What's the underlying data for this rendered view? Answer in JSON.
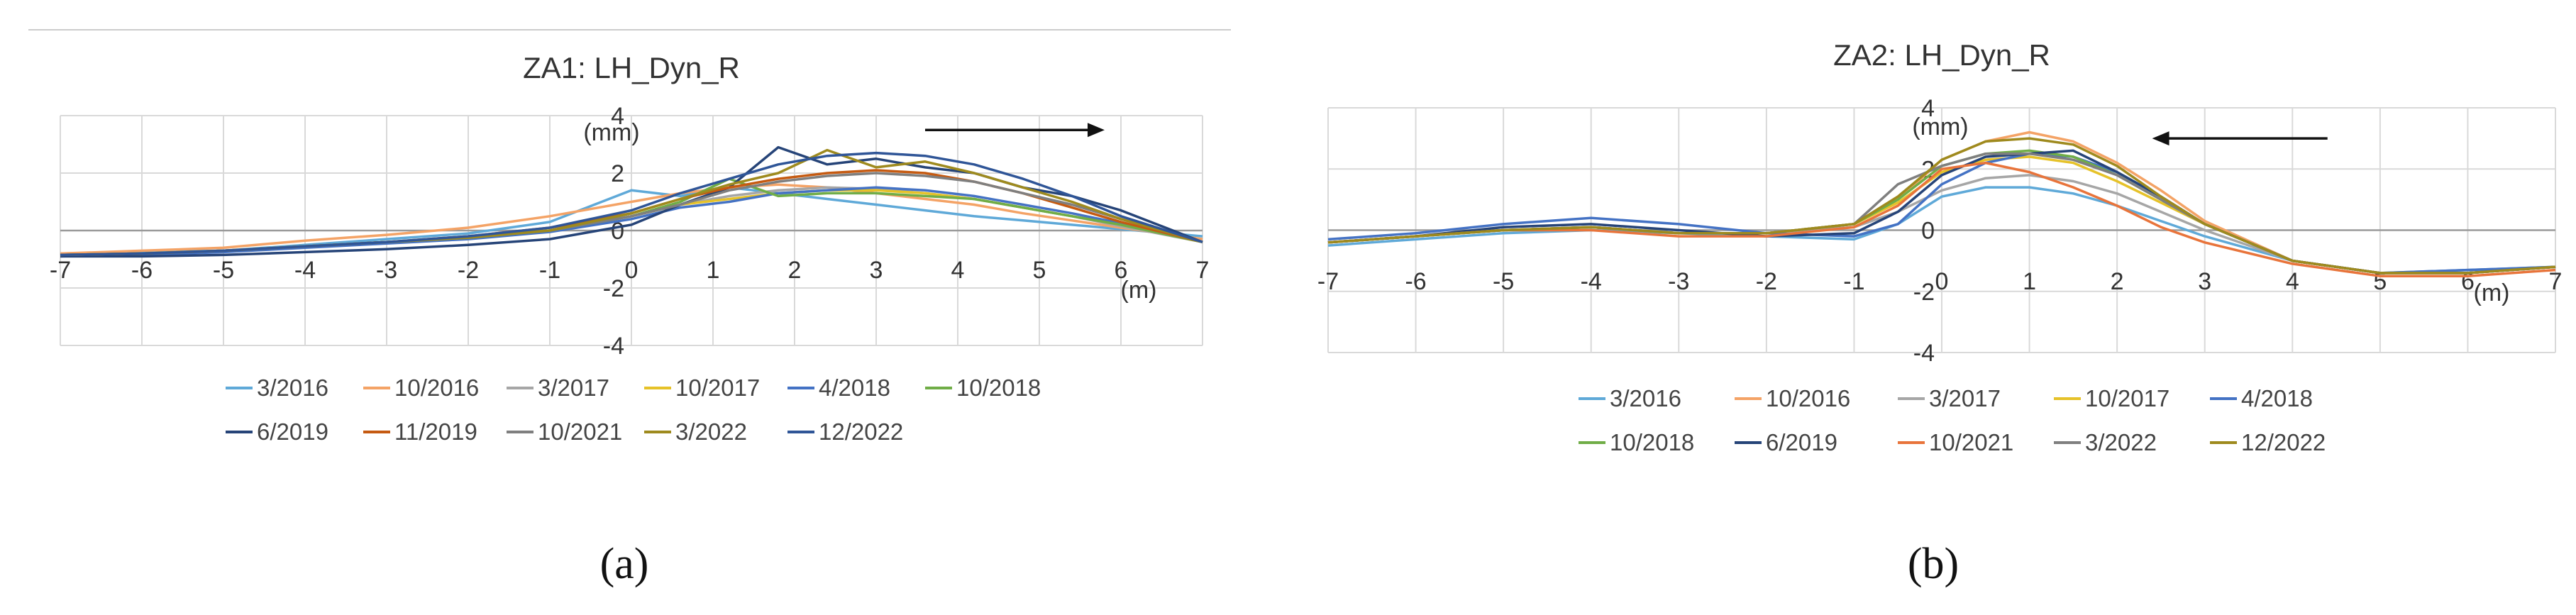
{
  "chart_data": [
    {
      "type": "line",
      "panel_label": "(a)",
      "title": "ZA1: LH_Dyn_R",
      "xlabel": "(m)",
      "ylabel": "(mm)",
      "xlim": [
        -7,
        7
      ],
      "ylim": [
        -4,
        4
      ],
      "xticks": [
        -7,
        -6,
        -5,
        -4,
        -3,
        -2,
        -1,
        0,
        1,
        2,
        3,
        4,
        5,
        6,
        7
      ],
      "yticks": [
        -4,
        -2,
        0,
        2,
        4
      ],
      "grid": true,
      "legend_position": "bottom",
      "arrow_direction": "right",
      "arrow_range": [
        3.6,
        5.8
      ],
      "arrow_y": 3.5,
      "x": [
        -7,
        -6,
        -5,
        -4,
        -3,
        -2,
        -1,
        0,
        0.6,
        1.2,
        1.8,
        2.4,
        3,
        3.6,
        4.2,
        4.8,
        5.4,
        6,
        7
      ],
      "series": [
        {
          "name": "3/2016",
          "color": "#5fa9d8",
          "values": [
            -0.8,
            -0.75,
            -0.7,
            -0.5,
            -0.3,
            -0.1,
            0.3,
            1.4,
            1.2,
            1.5,
            1.3,
            1.1,
            0.9,
            0.7,
            0.5,
            0.35,
            0.2,
            0.05,
            -0.2
          ]
        },
        {
          "name": "10/2016",
          "color": "#f4a366",
          "values": [
            -0.8,
            -0.7,
            -0.6,
            -0.35,
            -0.15,
            0.1,
            0.5,
            1.0,
            1.3,
            1.5,
            1.6,
            1.5,
            1.3,
            1.1,
            0.9,
            0.6,
            0.35,
            0.1,
            -0.3
          ]
        },
        {
          "name": "3/2017",
          "color": "#a6a6a6",
          "values": [
            -0.85,
            -0.8,
            -0.7,
            -0.55,
            -0.4,
            -0.25,
            0.0,
            0.5,
            0.9,
            1.2,
            1.4,
            1.5,
            1.45,
            1.3,
            1.1,
            0.8,
            0.5,
            0.15,
            -0.4
          ]
        },
        {
          "name": "10/2017",
          "color": "#e6c229",
          "values": [
            -0.85,
            -0.8,
            -0.7,
            -0.55,
            -0.4,
            -0.25,
            0.0,
            0.5,
            0.9,
            1.1,
            1.3,
            1.4,
            1.4,
            1.3,
            1.1,
            0.8,
            0.5,
            0.2,
            -0.4
          ]
        },
        {
          "name": "4/2018",
          "color": "#4472c4",
          "values": [
            -0.9,
            -0.85,
            -0.75,
            -0.6,
            -0.45,
            -0.3,
            -0.05,
            0.4,
            0.8,
            1.0,
            1.3,
            1.4,
            1.5,
            1.4,
            1.2,
            0.9,
            0.6,
            0.25,
            -0.4
          ]
        },
        {
          "name": "10/2018",
          "color": "#70ad47",
          "values": [
            -0.85,
            -0.8,
            -0.7,
            -0.55,
            -0.4,
            -0.25,
            0.0,
            0.5,
            1.0,
            1.8,
            1.2,
            1.3,
            1.3,
            1.2,
            1.1,
            0.8,
            0.5,
            0.2,
            -0.4
          ]
        },
        {
          "name": "6/2019",
          "color": "#264478",
          "values": [
            -0.9,
            -0.9,
            -0.85,
            -0.75,
            -0.65,
            -0.5,
            -0.3,
            0.2,
            0.9,
            1.5,
            2.9,
            2.3,
            2.5,
            2.2,
            2.0,
            1.5,
            1.2,
            0.7,
            -0.4
          ]
        },
        {
          "name": "11/2019",
          "color": "#c55a11",
          "values": [
            -0.85,
            -0.8,
            -0.7,
            -0.55,
            -0.4,
            -0.2,
            0.1,
            0.6,
            1.1,
            1.5,
            1.8,
            2.0,
            2.1,
            2.0,
            1.7,
            1.3,
            0.8,
            0.3,
            -0.4
          ]
        },
        {
          "name": "10/2021",
          "color": "#7f7f7f",
          "values": [
            -0.85,
            -0.8,
            -0.7,
            -0.55,
            -0.4,
            -0.25,
            0.0,
            0.5,
            0.9,
            1.4,
            1.7,
            1.9,
            2.0,
            1.9,
            1.7,
            1.3,
            0.9,
            0.4,
            -0.4
          ]
        },
        {
          "name": "3/2022",
          "color": "#9e8a1e",
          "values": [
            -0.85,
            -0.8,
            -0.7,
            -0.55,
            -0.4,
            -0.25,
            0.0,
            0.6,
            1.1,
            1.6,
            2.0,
            2.8,
            2.2,
            2.4,
            2.0,
            1.5,
            1.0,
            0.4,
            -0.4
          ]
        },
        {
          "name": "12/2022",
          "color": "#2f5597",
          "values": [
            -0.85,
            -0.8,
            -0.7,
            -0.55,
            -0.4,
            -0.2,
            0.1,
            0.7,
            1.3,
            1.8,
            2.3,
            2.6,
            2.7,
            2.6,
            2.3,
            1.8,
            1.2,
            0.5,
            -0.4
          ]
        }
      ]
    },
    {
      "type": "line",
      "panel_label": "(b)",
      "title": "ZA2: LH_Dyn_R",
      "xlabel": "(m)",
      "ylabel": "(mm)",
      "xlim": [
        -7,
        7
      ],
      "ylim": [
        -4,
        4
      ],
      "xticks": [
        -7,
        -6,
        -5,
        -4,
        -3,
        -2,
        -1,
        0,
        1,
        2,
        3,
        4,
        5,
        6,
        7
      ],
      "yticks": [
        -4,
        -2,
        0,
        2,
        4
      ],
      "grid": true,
      "legend_position": "bottom",
      "arrow_direction": "left",
      "arrow_range": [
        2.4,
        4.4
      ],
      "arrow_y": 3.0,
      "x": [
        -7,
        -6,
        -5,
        -4,
        -3,
        -2,
        -1,
        -0.5,
        0,
        0.5,
        1,
        1.5,
        2,
        2.5,
        3,
        4,
        5,
        6,
        7
      ],
      "series": [
        {
          "name": "3/2016",
          "color": "#5fa9d8",
          "values": [
            -0.5,
            -0.3,
            -0.1,
            0.0,
            -0.1,
            -0.2,
            -0.3,
            0.2,
            1.1,
            1.4,
            1.4,
            1.2,
            0.8,
            0.3,
            -0.2,
            -1.0,
            -1.4,
            -1.3,
            -1.2
          ]
        },
        {
          "name": "10/2016",
          "color": "#f4a366",
          "values": [
            -0.4,
            -0.2,
            0.0,
            0.1,
            -0.1,
            -0.1,
            0.2,
            1.0,
            2.3,
            2.9,
            3.2,
            2.9,
            2.2,
            1.3,
            0.3,
            -1.0,
            -1.4,
            -1.4,
            -1.2
          ]
        },
        {
          "name": "3/2017",
          "color": "#a6a6a6",
          "values": [
            -0.4,
            -0.2,
            0.0,
            0.1,
            -0.1,
            -0.1,
            0.1,
            0.6,
            1.3,
            1.7,
            1.8,
            1.6,
            1.2,
            0.6,
            0.0,
            -1.0,
            -1.4,
            -1.4,
            -1.2
          ]
        },
        {
          "name": "10/2017",
          "color": "#e6c229",
          "values": [
            -0.4,
            -0.2,
            0.0,
            0.1,
            -0.1,
            -0.1,
            0.2,
            0.9,
            1.9,
            2.3,
            2.4,
            2.2,
            1.6,
            0.9,
            0.2,
            -1.0,
            -1.4,
            -1.4,
            -1.2
          ]
        },
        {
          "name": "4/2018",
          "color": "#4472c4",
          "values": [
            -0.3,
            -0.1,
            0.2,
            0.4,
            0.2,
            -0.1,
            -0.2,
            0.2,
            1.5,
            2.2,
            2.5,
            2.4,
            1.9,
            1.1,
            0.2,
            -1.0,
            -1.4,
            -1.3,
            -1.2
          ]
        },
        {
          "name": "10/2018",
          "color": "#70ad47",
          "values": [
            -0.4,
            -0.2,
            0.0,
            0.1,
            -0.1,
            -0.1,
            0.2,
            1.0,
            2.1,
            2.5,
            2.6,
            2.4,
            1.8,
            1.0,
            0.2,
            -1.0,
            -1.4,
            -1.4,
            -1.2
          ]
        },
        {
          "name": "6/2019",
          "color": "#264478",
          "values": [
            -0.4,
            -0.2,
            0.1,
            0.2,
            0.0,
            -0.2,
            -0.1,
            0.6,
            1.8,
            2.4,
            2.5,
            2.6,
            1.9,
            1.1,
            0.2,
            -1.0,
            -1.4,
            -1.4,
            -1.2
          ]
        },
        {
          "name": "10/2021",
          "color": "#e8743b",
          "values": [
            -0.4,
            -0.2,
            0.0,
            0.0,
            -0.2,
            -0.2,
            0.1,
            0.8,
            2.0,
            2.2,
            1.9,
            1.4,
            0.8,
            0.1,
            -0.4,
            -1.1,
            -1.5,
            -1.5,
            -1.3
          ]
        },
        {
          "name": "3/2022",
          "color": "#7f7f7f",
          "values": [
            -0.4,
            -0.2,
            0.0,
            0.1,
            -0.1,
            -0.1,
            0.2,
            1.5,
            2.1,
            2.5,
            2.5,
            2.3,
            1.8,
            1.0,
            0.2,
            -1.0,
            -1.4,
            -1.4,
            -1.2
          ]
        },
        {
          "name": "12/2022",
          "color": "#9e8a1e",
          "values": [
            -0.4,
            -0.2,
            0.0,
            0.1,
            -0.1,
            -0.1,
            0.2,
            1.1,
            2.3,
            2.9,
            3.0,
            2.8,
            2.1,
            1.1,
            0.2,
            -1.0,
            -1.4,
            -1.4,
            -1.2
          ]
        }
      ]
    }
  ]
}
